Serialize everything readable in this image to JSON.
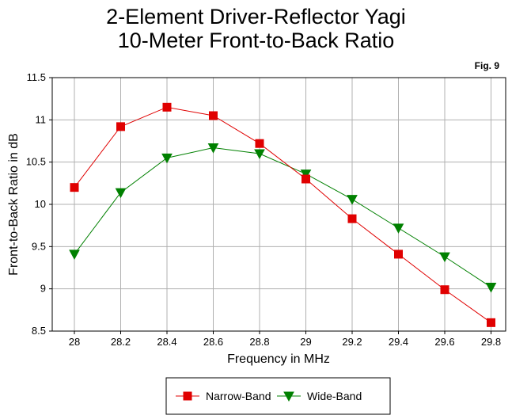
{
  "chart_data": {
    "type": "line",
    "title": "2-Element Driver-Reflector Yagi",
    "subtitle": "10-Meter Front-to-Back Ratio",
    "figure_label": "Fig. 9",
    "xlabel": "Frequency in MHz",
    "ylabel": "Front-to-Back Ratio in dB",
    "categories": [
      "28",
      "28.2",
      "28.4",
      "28.6",
      "28.8",
      "29",
      "29.2",
      "29.4",
      "29.6",
      "29.8"
    ],
    "ylim": [
      8.5,
      11.5
    ],
    "yticks": [
      "11.5",
      "11",
      "10.5",
      "10",
      "9.5",
      "9",
      "8.5"
    ],
    "grid": true,
    "legend_position": "bottom",
    "series": [
      {
        "name": "Narrow-Band",
        "color": "#e00000",
        "marker": "square",
        "values": [
          10.2,
          10.92,
          11.15,
          11.05,
          10.72,
          10.3,
          9.83,
          9.41,
          8.99,
          8.6
        ]
      },
      {
        "name": "Wide-Band",
        "color": "#008000",
        "marker": "triangle-down",
        "values": [
          9.41,
          10.14,
          10.55,
          10.67,
          10.6,
          10.36,
          10.06,
          9.72,
          9.38,
          9.02
        ]
      }
    ]
  }
}
